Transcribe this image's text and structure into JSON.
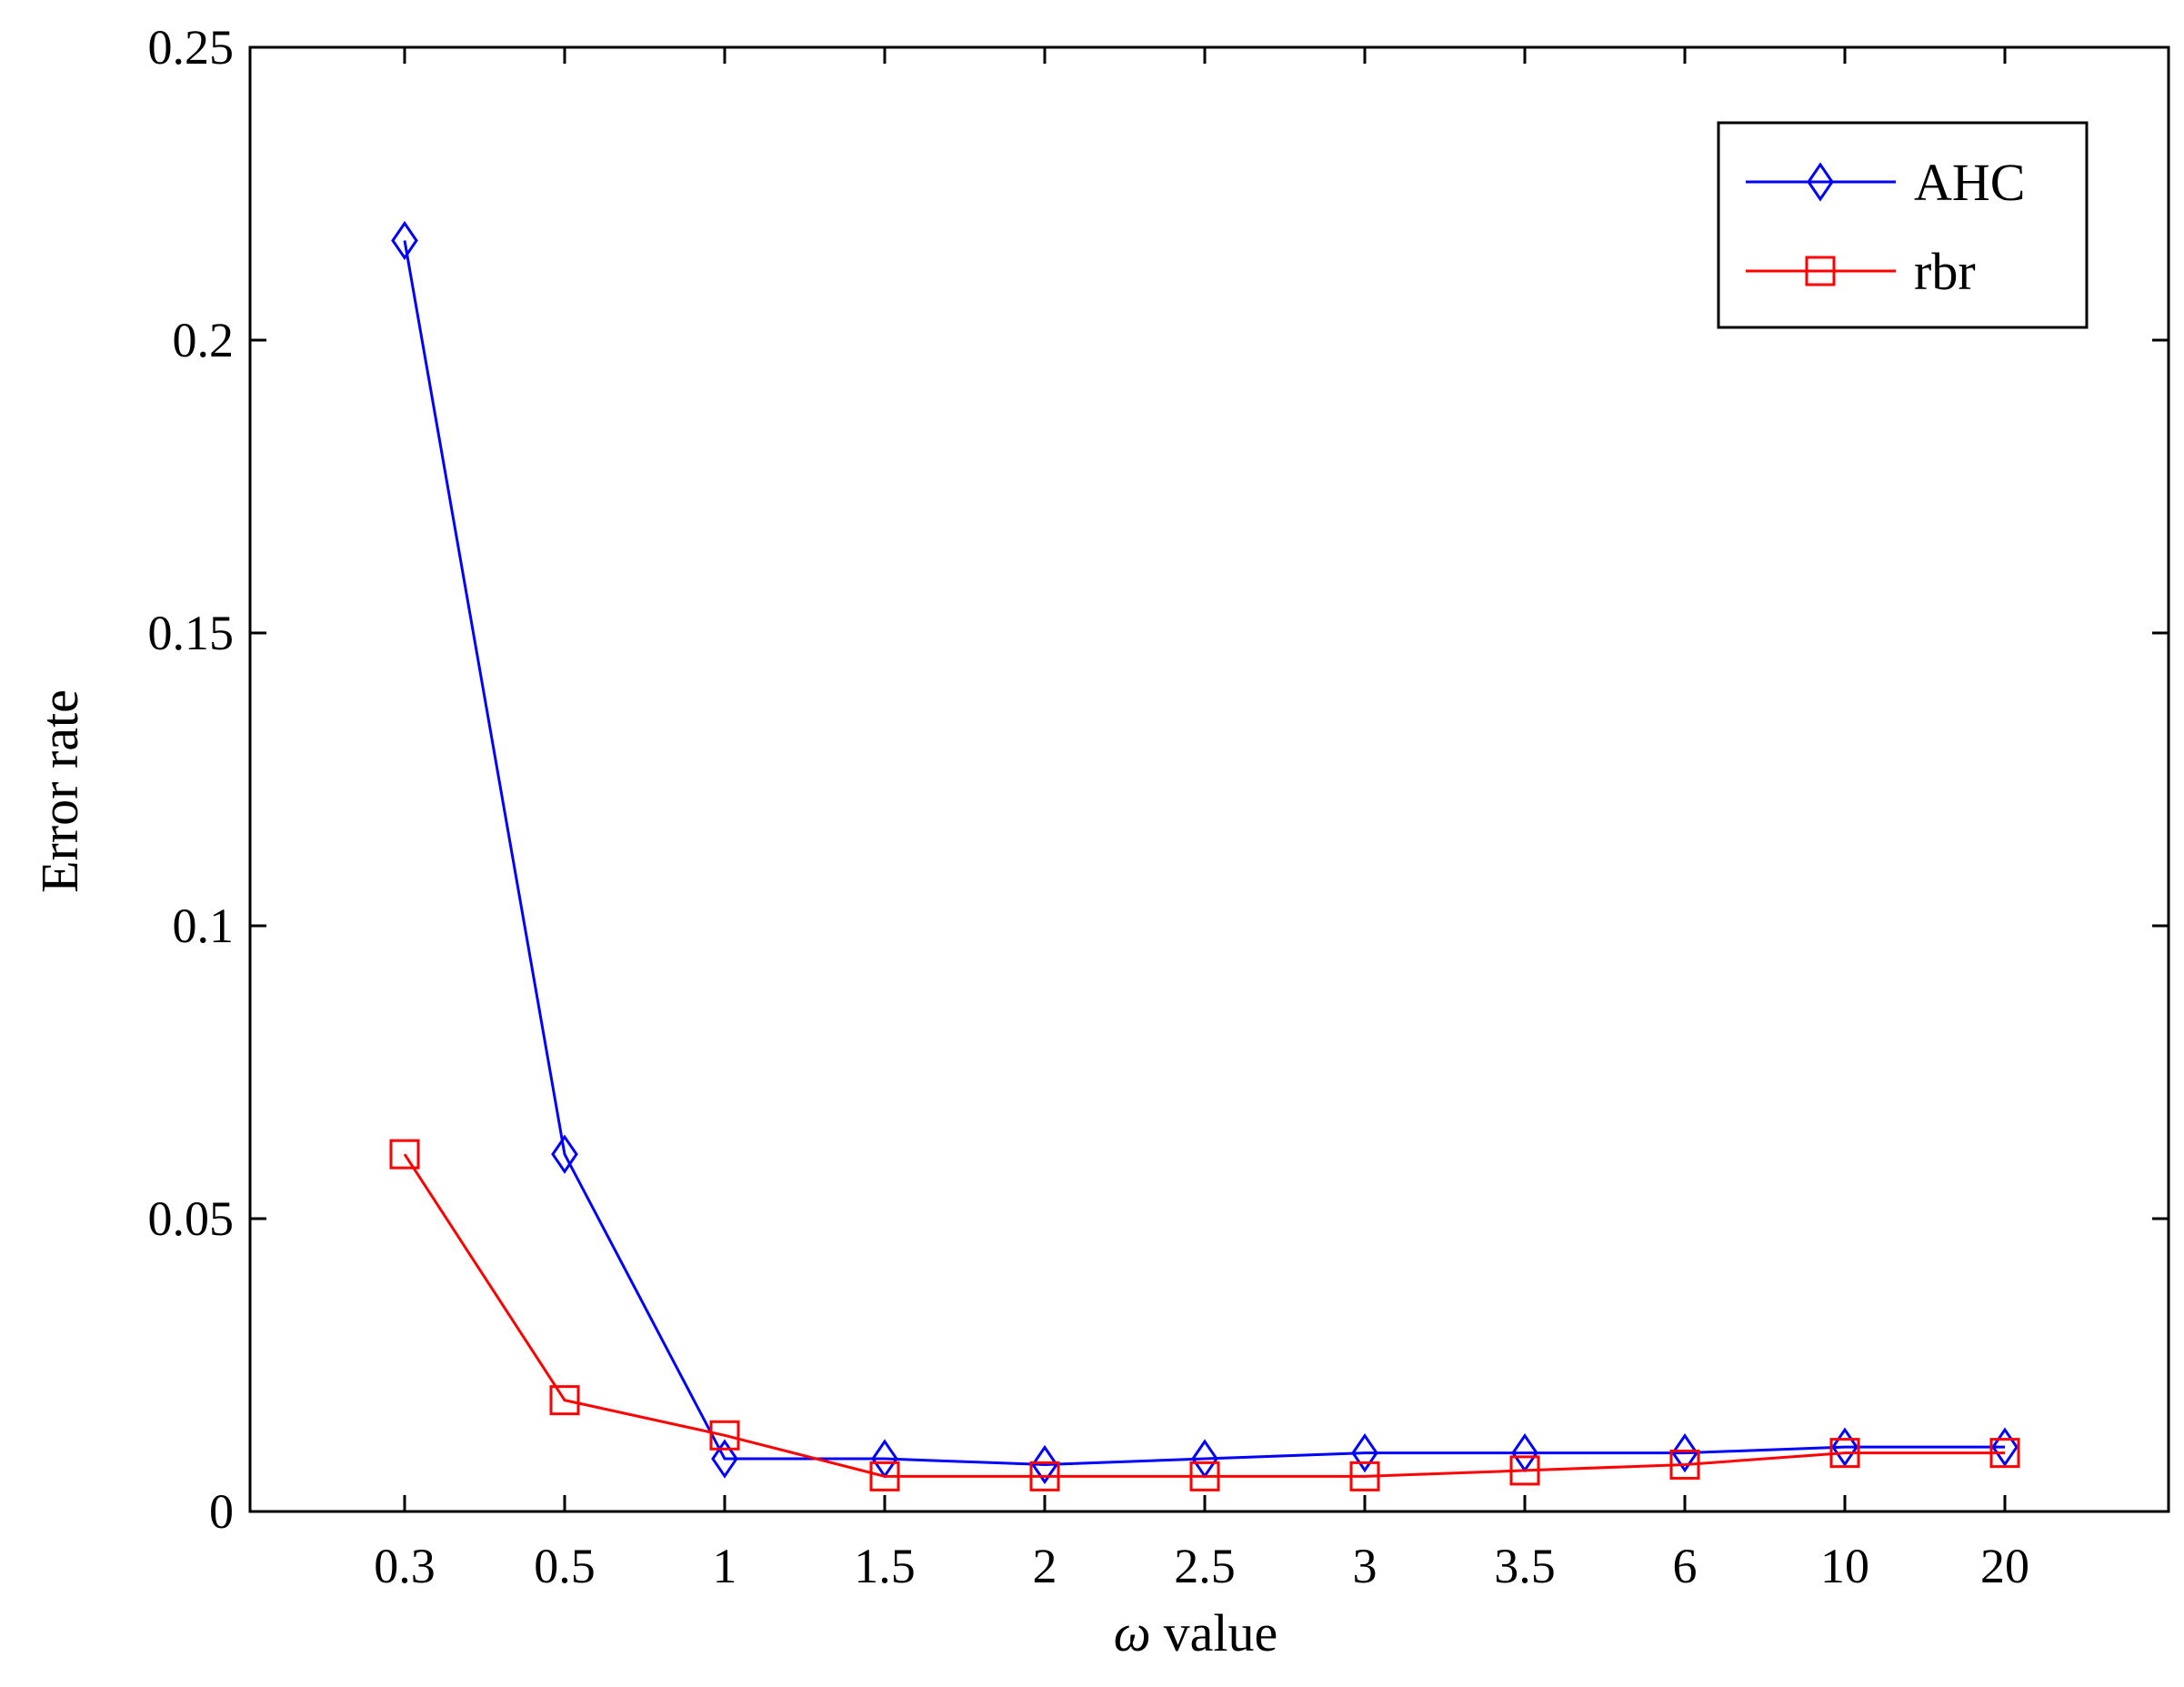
{
  "chart_data": {
    "type": "line",
    "categories": [
      "0.3",
      "0.5",
      "1",
      "1.5",
      "2",
      "2.5",
      "3",
      "3.5",
      "6",
      "10",
      "20"
    ],
    "series": [
      {
        "name": "AHC",
        "color": "#0000ff",
        "marker": "diamond",
        "values": [
          0.217,
          0.061,
          0.009,
          0.009,
          0.008,
          0.009,
          0.01,
          0.01,
          0.01,
          0.011,
          0.011
        ]
      },
      {
        "name": "rbr",
        "color": "#ff0000",
        "marker": "square",
        "values": [
          0.061,
          0.019,
          0.013,
          0.006,
          0.006,
          0.006,
          0.006,
          0.007,
          0.008,
          0.01,
          0.01
        ]
      }
    ],
    "xlabel_symbol": "ω",
    "xlabel_text": "value",
    "ylabel": "Error rate",
    "ylim": [
      0,
      0.25
    ],
    "yticks": [
      "0",
      "0.05",
      "0.1",
      "0.15",
      "0.2",
      "0.25"
    ],
    "grid": false,
    "legend_position": "top-right"
  }
}
